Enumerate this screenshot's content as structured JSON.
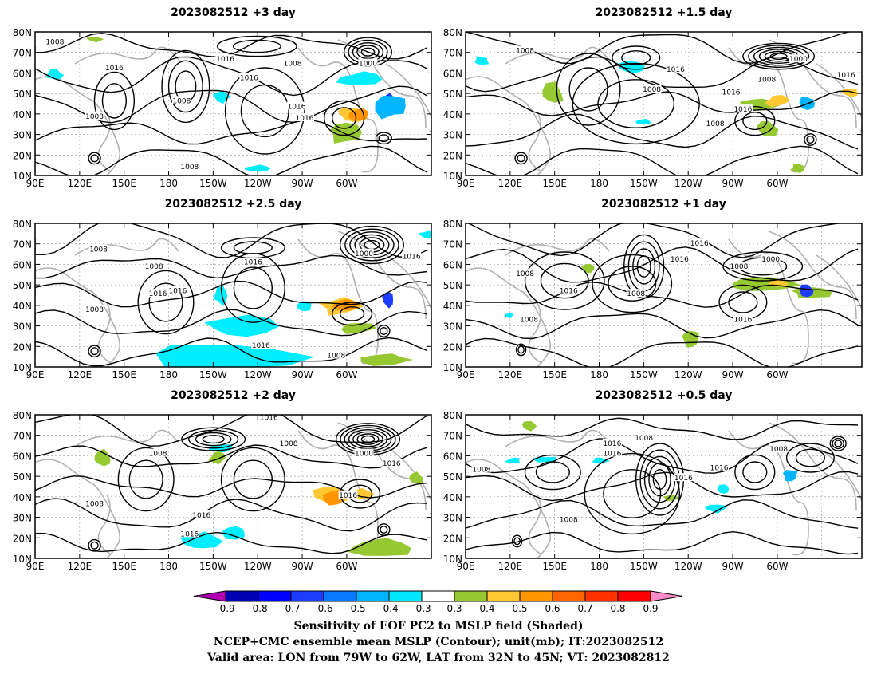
{
  "panels": [
    {
      "title": "2023082512  +3 day",
      "contour_labels": [
        "1008",
        "1016",
        "1008",
        "1016",
        "1008",
        "1000",
        "1016",
        "1008",
        "1016",
        "1016",
        "1008"
      ]
    },
    {
      "title": "2023082512  +1.5 day",
      "contour_labels": [
        "1008",
        "1016",
        "1000",
        "1008",
        "1016",
        "1016",
        "1008",
        "1016",
        "1008"
      ]
    },
    {
      "title": "2023082512  +2.5 day",
      "contour_labels": [
        "1008",
        "1016",
        "1008",
        "1016",
        "1000",
        "1016",
        "1016",
        "1008",
        "1016",
        "1008"
      ]
    },
    {
      "title": "2023082512  +1 day",
      "contour_labels": [
        "1016",
        "1016",
        "1008",
        "1000",
        "1008",
        "1016",
        "1008",
        "1008",
        "1016"
      ]
    },
    {
      "title": "2023082512  +2 day",
      "contour_labels": [
        "1016",
        "1008",
        "1008",
        "1000",
        "1016",
        "1008",
        "1016",
        "1016",
        "1016"
      ]
    },
    {
      "title": "2023082512  +0.5 day",
      "contour_labels": [
        "1008",
        "1016",
        "1016",
        "1008",
        "1008",
        "1016",
        "1016",
        "1008"
      ]
    }
  ],
  "lat_ticks": [
    "80N",
    "70N",
    "60N",
    "50N",
    "40N",
    "30N",
    "20N",
    "10N"
  ],
  "lon_ticks": [
    "90E",
    "120E",
    "150E",
    "180",
    "150W",
    "120W",
    "90W",
    "60W"
  ],
  "colorbar": {
    "labels": [
      "-0.9",
      "-0.8",
      "-0.7",
      "-0.6",
      "-0.5",
      "-0.4",
      "-0.3",
      "0.3",
      "0.4",
      "0.5",
      "0.6",
      "0.7",
      "0.8",
      "0.9"
    ],
    "colors": [
      "#b000b0",
      "#0000b4",
      "#0000ff",
      "#1e3cff",
      "#0a78ff",
      "#00b4ff",
      "#00e6ff",
      "#ffffff",
      "#96c832",
      "#ffc832",
      "#ff9600",
      "#ff6400",
      "#ff3200",
      "#ff0000",
      "#ff8cc8"
    ]
  },
  "shading_colors": {
    "cyan": "#00ecff",
    "lightblue": "#00b4ff",
    "blue": "#1e3cff",
    "green": "#96c832",
    "yellow": "#ffc832",
    "orange": "#ff9600",
    "red": "#ff3200"
  },
  "caption": {
    "line1": "Sensitivity of EOF PC2 to MSLP field (Shaded)",
    "line2": "NCEP+CMC ensemble mean MSLP (Contour); unit(mb); IT:2023082512",
    "line3": "Valid area: LON from 79W to 62W, LAT from 32N to 45N; VT: 2023082812"
  }
}
